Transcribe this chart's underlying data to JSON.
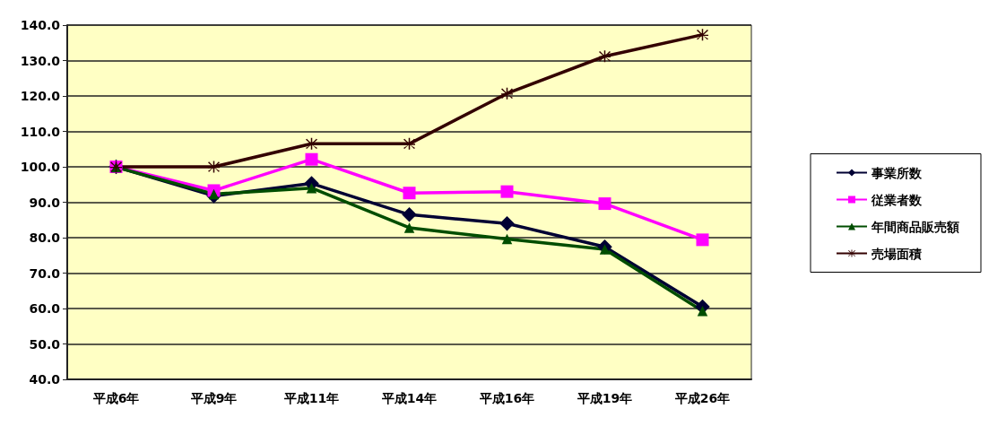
{
  "chart_data": {
    "type": "line",
    "categories": [
      "平成6年",
      "平成9年",
      "平成11年",
      "平成14年",
      "平成16年",
      "平成19年",
      "平成26年"
    ],
    "series": [
      {
        "name": "事業所数",
        "color": "#000033",
        "marker": "diamond",
        "values": [
          100,
          91.8,
          95.3,
          86.5,
          84,
          77.4,
          60.5
        ]
      },
      {
        "name": "従業者数",
        "color": "#ff00ff",
        "marker": "square",
        "values": [
          100,
          93.3,
          102.1,
          92.6,
          93,
          89.6,
          79.4
        ]
      },
      {
        "name": "年間商品販売額",
        "color": "#004d00",
        "marker": "triangle",
        "values": [
          99.9,
          92.3,
          94,
          82.8,
          79.6,
          76.7,
          59.3
        ]
      },
      {
        "name": "売場面積",
        "color": "#330000",
        "marker": "cross",
        "values": [
          100,
          100,
          106.5,
          106.5,
          120.7,
          131.2,
          137.3
        ]
      }
    ],
    "ylim": [
      40,
      140
    ],
    "yticks": [
      {
        "value": 40,
        "label": "40.0"
      },
      {
        "value": 50,
        "label": "50.0"
      },
      {
        "value": 60,
        "label": "60.0"
      },
      {
        "value": 70,
        "label": "70.0"
      },
      {
        "value": 80,
        "label": "80.0"
      },
      {
        "value": 90,
        "label": "90.0"
      },
      {
        "value": 100,
        "label": "100.0"
      },
      {
        "value": 110,
        "label": "110.0"
      },
      {
        "value": 120,
        "label": "120.0"
      },
      {
        "value": 130,
        "label": "130.0"
      },
      {
        "value": 140,
        "label": "140.0"
      }
    ],
    "grid": "y",
    "legend": "right"
  }
}
